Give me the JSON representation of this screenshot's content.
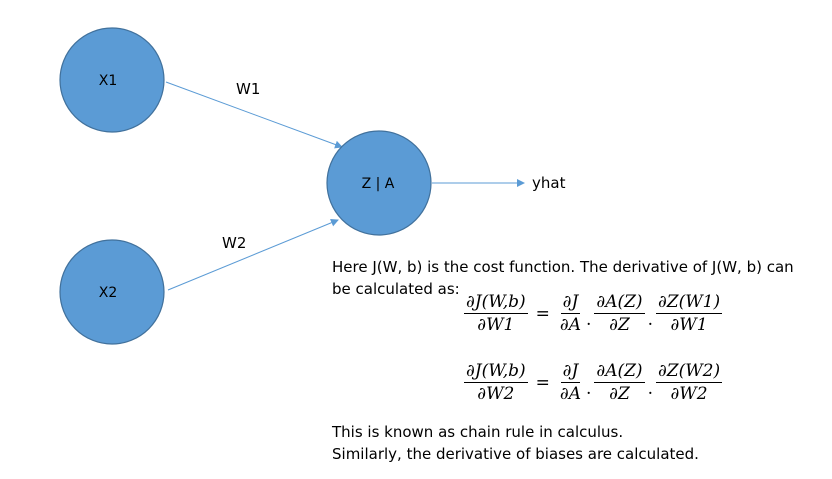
{
  "colors": {
    "node_fill": "#5B9BD5",
    "node_stroke": "#41719C",
    "edge": "#5B9BD5"
  },
  "diagram": {
    "nodes": {
      "x1": "X1",
      "x2": "X2",
      "z": "Z | A"
    },
    "edges": {
      "w1": "W1",
      "w2": "W2",
      "output": "yhat"
    }
  },
  "text": {
    "intro": "Here J(W, b) is the cost function. The derivative of J(W, b) can be calculated as:",
    "conclusion_line1": "This is known as chain rule in calculus.",
    "conclusion_line2": "Similarly, the derivative of biases are calculated."
  },
  "equations": [
    {
      "lhs_num": "∂J(W,b)",
      "lhs_den": "∂W1",
      "equals": "=",
      "f1_num": "∂J",
      "f1_den": "∂A",
      "f2_num": "∂A(Z)",
      "f2_den": "∂Z",
      "f3_num": "∂Z(W1)",
      "f3_den": "∂W1",
      "dot": "."
    },
    {
      "lhs_num": "∂J(W,b)",
      "lhs_den": "∂W2",
      "equals": "=",
      "f1_num": "∂J",
      "f1_den": "∂A",
      "f2_num": "∂A(Z)",
      "f2_den": "∂Z",
      "f3_num": "∂Z(W2)",
      "f3_den": "∂W2",
      "dot": "."
    }
  ]
}
